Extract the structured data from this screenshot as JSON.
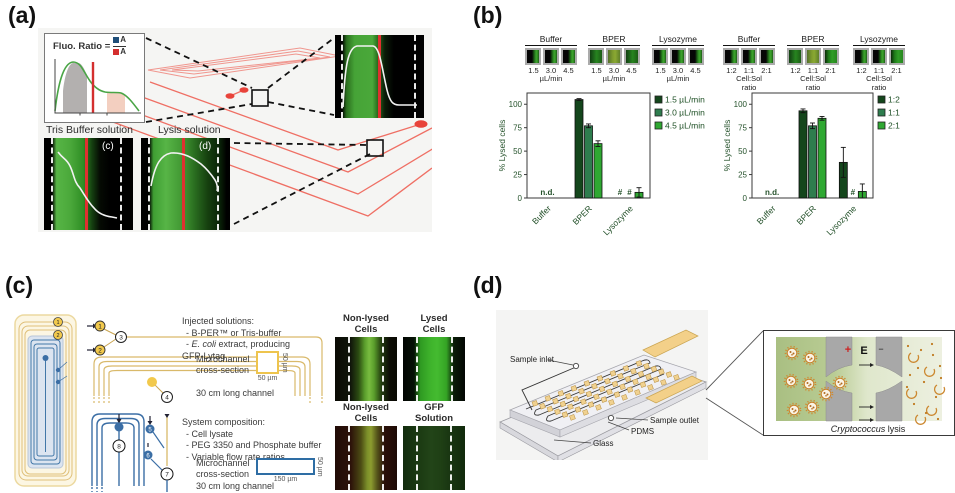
{
  "colors": {
    "accent_red": "#e8534a",
    "channel_yellow": "#d9b96a",
    "channel_blue": "#3b6ea5",
    "green_dark": "#14461c",
    "green_mid": "#2e7d4e",
    "green_light": "#2fa832"
  },
  "panel_a": {
    "label": "(a)",
    "formula_prefix": "Fluo. Ratio =",
    "formula_numerator": "A",
    "formula_denominator": "A",
    "micrographs": [
      {
        "title": "Tris Buffer solution",
        "tag": "(c)"
      },
      {
        "title": "Lysis solution",
        "tag": "(d)"
      }
    ]
  },
  "panel_b": {
    "label": "(b)",
    "flow_groups": [
      {
        "title": "Buffer",
        "tile_labels": [
          "1.5",
          "3.0",
          "4.5"
        ],
        "unit_lines": [
          "µL/min"
        ]
      },
      {
        "title": "BPER",
        "tile_labels": [
          "1.5",
          "3.0",
          "4.5"
        ],
        "unit_lines": [
          "µL/min"
        ]
      },
      {
        "title": "Lysozyme",
        "tile_labels": [
          "1.5",
          "3.0",
          "4.5"
        ],
        "unit_lines": [
          "µL/min"
        ]
      },
      {
        "title": "Buffer",
        "tile_labels": [
          "1:2",
          "1:1",
          "2:1"
        ],
        "unit_lines": [
          "Cell:Sol",
          "ratio"
        ]
      },
      {
        "title": "BPER",
        "tile_labels": [
          "1:2",
          "1:1",
          "2:1"
        ],
        "unit_lines": [
          "Cell:Sol",
          "ratio"
        ]
      },
      {
        "title": "Lysozyme",
        "tile_labels": [
          "1:2",
          "1:1",
          "2:1"
        ],
        "unit_lines": [
          "Cell:Sol",
          "ratio"
        ]
      }
    ]
  },
  "chart_data": [
    {
      "type": "bar",
      "title": "",
      "ylabel": "% Lysed cells",
      "yticks": [
        0,
        25,
        50,
        75,
        100
      ],
      "ylim": [
        0,
        112
      ],
      "categories": [
        "Buffer",
        "BPER",
        "Lysozyme"
      ],
      "series": [
        {
          "name": "1.5 µL/min",
          "color": "#14461c",
          "values": [
            null,
            105,
            null
          ],
          "errors": [
            null,
            1,
            null
          ]
        },
        {
          "name": "3.0 µL/min",
          "color": "#2e7d4e",
          "values": [
            null,
            77,
            null
          ],
          "errors": [
            null,
            2,
            null
          ]
        },
        {
          "name": "4.5 µL/min",
          "color": "#2fa832",
          "values": [
            null,
            58,
            6
          ],
          "errors": [
            null,
            3,
            5
          ]
        }
      ],
      "placeholders": [
        {
          "category": 0,
          "text": "n.d."
        },
        {
          "category": 2,
          "series": 0,
          "text": "#"
        },
        {
          "category": 2,
          "series": 1,
          "text": "#"
        }
      ],
      "legend_position": "right"
    },
    {
      "type": "bar",
      "title": "",
      "ylabel": "% Lysed cells",
      "yticks": [
        0,
        25,
        50,
        75,
        100
      ],
      "ylim": [
        0,
        112
      ],
      "categories": [
        "Buffer",
        "BPER",
        "Lysozyme"
      ],
      "series": [
        {
          "name": "1:2",
          "color": "#14461c",
          "values": [
            null,
            93,
            38
          ],
          "errors": [
            null,
            2,
            16
          ]
        },
        {
          "name": "1:1",
          "color": "#2e7d4e",
          "values": [
            null,
            77,
            null
          ],
          "errors": [
            null,
            3,
            null
          ]
        },
        {
          "name": "2:1",
          "color": "#2fa832",
          "values": [
            null,
            85,
            7
          ],
          "errors": [
            null,
            2,
            8
          ]
        }
      ],
      "placeholders": [
        {
          "category": 0,
          "text": "n.d."
        },
        {
          "category": 2,
          "series": 1,
          "text": "#"
        }
      ],
      "legend_position": "right"
    }
  ],
  "panel_c": {
    "label": "(c)",
    "ports": [
      "1",
      "2",
      "3",
      "4",
      "5",
      "6",
      "7",
      "8"
    ],
    "injected_heading": "Injected solutions:",
    "injected_line1": "- B-PER™ or Tris-buffer",
    "injected_line2_prefix": "- ",
    "injected_line2_italic": "E. coli",
    "injected_line2_rest": " extract, producing",
    "injected_line3": "GFP-Lytag",
    "cross1_label1": "Microchannel",
    "cross1_label2": "cross-section",
    "cross1_width": "50 µm",
    "cross1_height": "50 µm",
    "cross1_note": "30 cm long channel",
    "system_heading": "System composition:",
    "system_line1": "- Cell lysate",
    "system_line2": "- PEG 3350 and Phosphate buffer",
    "system_line3": "- Variable flow rate ratios",
    "cross2_label1": "Microchannel",
    "cross2_label2": "cross-section",
    "cross2_width": "150 µm",
    "cross2_height": "50 µm",
    "cross2_note": "30 cm long channel",
    "micrographs": [
      {
        "line1": "Non-lysed",
        "line2": "Cells"
      },
      {
        "line1": "Lysed",
        "line2": "Cells"
      },
      {
        "line1": "Non-lysed",
        "line2": "Cells"
      },
      {
        "line1": "GFP",
        "line2": "Solution"
      }
    ]
  },
  "panel_d": {
    "label": "(d)",
    "sample_inlet": "Sample inlet",
    "sample_outlet": "Sample outlet",
    "pdms": "PDMS",
    "glass": "Glass",
    "electrode_plus": "+",
    "field_label": "E",
    "electrode_minus": "−",
    "caption_italic": "Cryptococcus",
    "caption_rest": " lysis"
  }
}
